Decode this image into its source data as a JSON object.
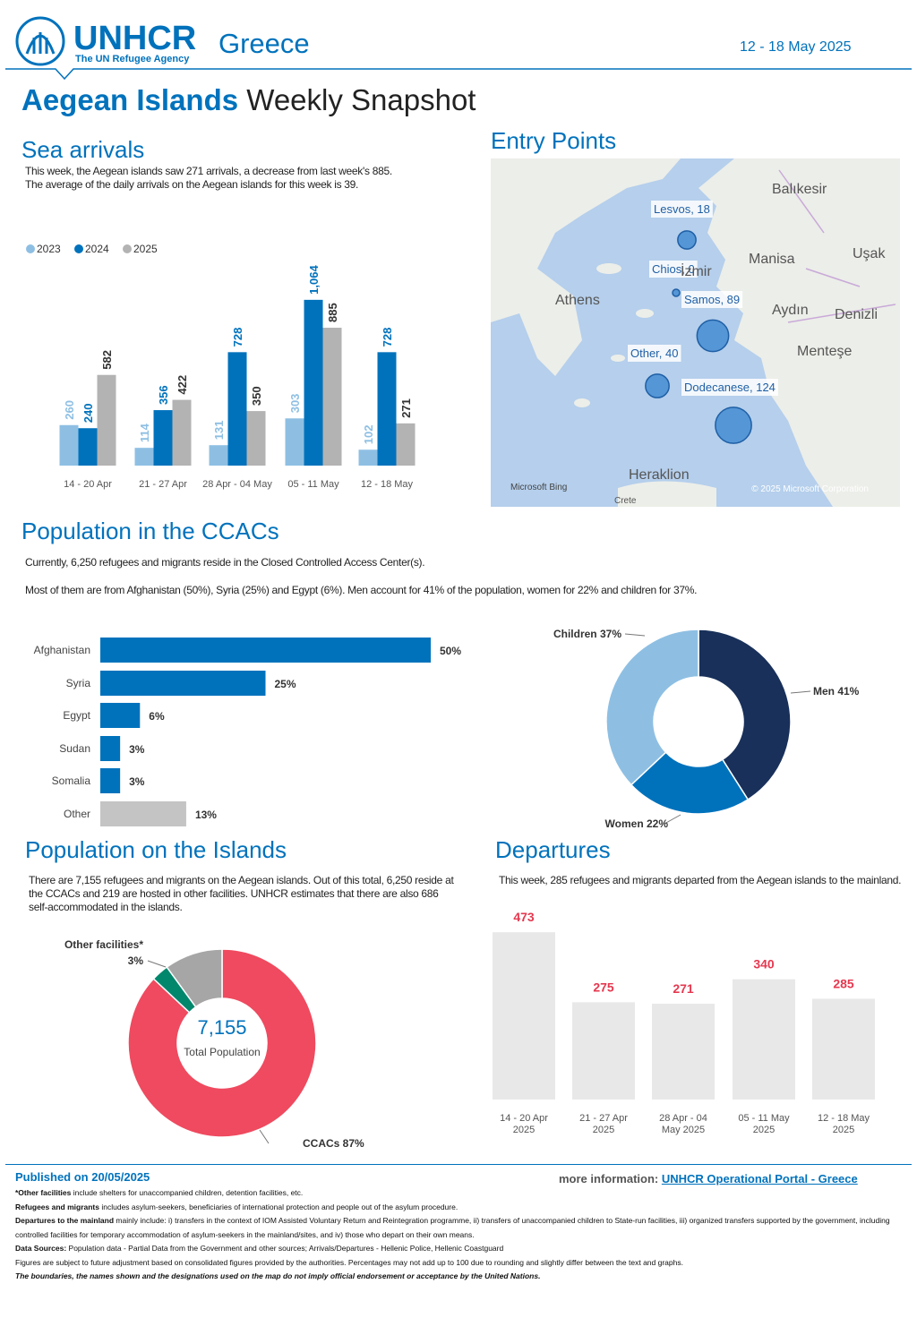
{
  "header": {
    "org": "UNHCR",
    "tagline": "The UN Refugee Agency",
    "country": "Greece",
    "date": "12 - 18 May 2025"
  },
  "title": {
    "bold": "Aegean Islands",
    "rest": "Weekly Snapshot"
  },
  "sea_arrivals": {
    "heading": "Sea arrivals",
    "text": [
      "This week, the Aegean islands saw 271 arrivals, a decrease from last week's 885.",
      "The average of the daily arrivals on the Aegean islands for this week is 39."
    ]
  },
  "entry_points": {
    "heading": "Entry Points"
  },
  "ccac": {
    "heading": "Population in the CCACs",
    "text": [
      "Currently, 6,250 refugees and migrants reside in the Closed Controlled Access Center(s).",
      "Most of them are from Afghanistan (50%), Syria (25%) and Egypt (6%). Men account for 41% of the population, women for 22% and children for 37%."
    ]
  },
  "islands": {
    "heading": "Population on the Islands",
    "text": "There are 7,155 refugees and migrants on the Aegean islands. Out of this total, 6,250 reside at the CCACs and 219 are hosted in other facilities. UNHCR estimates that there are also 686 self-accommodated in the islands."
  },
  "departures": {
    "heading": "Departures",
    "text": "This week, 285 refugees and migrants departed from the Aegean islands to the mainland."
  },
  "footer": {
    "published": "Published on 20/05/2025",
    "more_label": "more information:",
    "more_link": "UNHCR Operational Portal - Greece",
    "notes": [
      {
        "bold": "*Other facilities",
        "text": " include shelters for unaccompanied children, detention facilities, etc."
      },
      {
        "bold": "Refugees and migrants",
        "text": " includes asylum-seekers, beneficiaries of international protection and people out of the asylum procedure."
      },
      {
        "bold": "Departures to the mainland",
        "text": " mainly include: i) transfers in the context of IOM Assisted Voluntary Return and Reintegration programme, ii) transfers of unaccompanied children to State-run facilities, iii) organized transfers supported by the government, including controlled facilities for temporary accommodation of asylum-seekers in the mainland/sites, and iv) those who depart on their own means."
      },
      {
        "bold": "Data Sources:",
        "text": " Population data - Partial Data from the Government and other sources; Arrivals/Departures - Hellenic Police, Hellenic Coastguard"
      },
      {
        "text": "Figures are subject to future adjustment based on consolidated figures provided by the authorities. Percentages may not add up to 100 due to rounding and slightly differ between the text and graphs."
      },
      {
        "italic": "The boundaries, the names shown and the designations used on the map do not imply official endorsement or acceptance by the United Nations."
      }
    ]
  },
  "chart_data": [
    {
      "type": "grouped-bar",
      "categories": [
        "14 - 20 Apr",
        "21 - 27 Apr",
        "28 Apr - 04 May",
        "05 - 11 May",
        "12 - 18 May"
      ],
      "series": [
        {
          "name": "2023",
          "color": "#8ebfe3",
          "label_color": "#8ebfe3",
          "values": [
            260,
            114,
            131,
            303,
            102
          ]
        },
        {
          "name": "2024",
          "color": "#0072bc",
          "label_color": "#0072bc",
          "values": [
            240,
            356,
            728,
            1064,
            728
          ],
          "value_labels": [
            "240",
            "356",
            "728",
            "1,064",
            "728"
          ]
        },
        {
          "name": "2025",
          "color": "#b3b3b3",
          "label_color": "#333333",
          "values": [
            582,
            422,
            350,
            885,
            271
          ]
        }
      ]
    },
    {
      "type": "bubble-map",
      "categories": [
        "Lesvos",
        "Chios",
        "Samos",
        "Other",
        "Dodecanese"
      ],
      "values": [
        18,
        0,
        89,
        40,
        124
      ],
      "value_labels": [
        "Lesvos, 18",
        "Chios, 0",
        "Samos, 89",
        "Other, 40",
        "Dodecanese, 124"
      ],
      "color": "#4a8fd4",
      "places": [
        "Balıkesir",
        "Manisa",
        "Uşak",
        "Athens",
        "İzmir",
        "Aydın",
        "Denizli",
        "Menteşe",
        "Heraklion",
        "Crete"
      ],
      "credits": [
        "Microsoft Bing",
        "© 2025 Microsoft Corporation"
      ]
    },
    {
      "type": "hbar",
      "categories": [
        "Afghanistan",
        "Syria",
        "Egypt",
        "Sudan",
        "Somalia",
        "Other"
      ],
      "values": [
        50,
        25,
        6,
        3,
        3,
        13
      ],
      "value_labels": [
        "50%",
        "25%",
        "6%",
        "3%",
        "3%",
        "13%"
      ],
      "colors": [
        "#0072bc",
        "#0072bc",
        "#0072bc",
        "#0072bc",
        "#0072bc",
        "#c4c4c4"
      ]
    },
    {
      "type": "donut",
      "categories": [
        "Men",
        "Women",
        "Children"
      ],
      "values": [
        41,
        22,
        37
      ],
      "value_labels": [
        "Men 41%",
        "Women 22%",
        "Children 37%"
      ],
      "colors": [
        "#18305a",
        "#0072bc",
        "#8ebfe3"
      ]
    },
    {
      "type": "donut",
      "categories": [
        "CCACs",
        "Other facilities*",
        null
      ],
      "values": [
        87,
        3,
        10
      ],
      "value_labels": [
        "CCACs 87%",
        "3%",
        null
      ],
      "colors": [
        "#ef4a5f",
        "#00876c",
        "#a6a6a6"
      ],
      "center_value": 7155,
      "center_value_label": "7,155",
      "center_label": "Total Population"
    },
    {
      "type": "bar",
      "categories": [
        "14 - 20 Apr 2025",
        "21 - 27 Apr 2025",
        "28 Apr - 04 May 2025",
        "05 - 11 May 2025",
        "12 - 18 May 2025"
      ],
      "values": [
        473,
        275,
        271,
        340,
        285
      ],
      "color": "#e8e8e8",
      "label_color": "#e5384f"
    }
  ]
}
